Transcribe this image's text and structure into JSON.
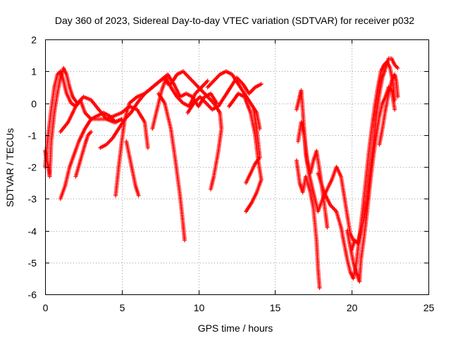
{
  "chart_data": {
    "type": "scatter",
    "title": "Day 360 of 2023, Sidereal Day-to-day VTEC variation (SDTVAR) for receiver p032",
    "xlabel": "GPS time / hours",
    "ylabel": "SDTVAR / TECUs",
    "xlim": [
      0,
      25
    ],
    "ylim": [
      -6,
      2
    ],
    "xticks": [
      "0",
      "5",
      "10",
      "15",
      "20",
      "25"
    ],
    "yticks": [
      "2",
      "1",
      "0",
      "-1",
      "-2",
      "-3",
      "-4",
      "-5",
      "-6"
    ],
    "grid": true,
    "marker": "plus",
    "color": "#ff0000",
    "tracks": [
      [
        [
          0.0,
          -1.5
        ],
        [
          0.2,
          -2.0
        ],
        [
          0.3,
          -2.3
        ],
        [
          0.4,
          -1.2
        ],
        [
          0.6,
          -0.3
        ],
        [
          0.8,
          0.3
        ],
        [
          1.0,
          0.8
        ],
        [
          1.2,
          1.1
        ],
        [
          1.4,
          0.9
        ],
        [
          1.6,
          0.5
        ],
        [
          1.8,
          0.2
        ],
        [
          2.1,
          0.0
        ]
      ],
      [
        [
          0.0,
          -2.0
        ],
        [
          0.2,
          -1.0
        ],
        [
          0.4,
          -0.2
        ],
        [
          0.6,
          0.5
        ],
        [
          0.8,
          0.9
        ],
        [
          1.0,
          1.0
        ],
        [
          1.2,
          0.7
        ],
        [
          1.4,
          0.3
        ],
        [
          1.7,
          0.0
        ],
        [
          2.0,
          -0.1
        ],
        [
          2.3,
          0.1
        ],
        [
          2.6,
          -0.3
        ],
        [
          3.0,
          -0.5
        ],
        [
          3.5,
          -0.5
        ],
        [
          4.0,
          -0.5
        ],
        [
          4.5,
          -0.6
        ],
        [
          5.0,
          -0.5
        ]
      ],
      [
        [
          1.0,
          -3.0
        ],
        [
          1.3,
          -2.6
        ],
        [
          1.6,
          -2.0
        ],
        [
          1.9,
          -1.6
        ],
        [
          2.2,
          -1.2
        ],
        [
          2.6,
          -0.8
        ],
        [
          3.0,
          -0.5
        ],
        [
          3.4,
          -0.4
        ],
        [
          3.8,
          -0.3
        ],
        [
          4.2,
          -0.4
        ],
        [
          4.6,
          -0.6
        ],
        [
          5.0,
          -0.5
        ]
      ],
      [
        [
          1.0,
          -0.9
        ],
        [
          1.5,
          -0.6
        ],
        [
          2.0,
          -0.1
        ],
        [
          2.5,
          0.2
        ],
        [
          3.0,
          0.1
        ],
        [
          3.5,
          -0.2
        ],
        [
          4.0,
          -0.5
        ],
        [
          4.5,
          -0.4
        ],
        [
          5.0,
          -0.3
        ],
        [
          5.5,
          -0.1
        ],
        [
          6.0,
          -0.2
        ],
        [
          6.5,
          -0.6
        ],
        [
          6.7,
          -1.4
        ]
      ],
      [
        [
          2.0,
          -2.3
        ],
        [
          2.3,
          -1.8
        ],
        [
          2.6,
          -1.3
        ],
        [
          2.8,
          -1.0
        ],
        [
          3.0,
          -0.9
        ]
      ],
      [
        [
          3.6,
          -1.4
        ],
        [
          4.0,
          -1.3
        ],
        [
          4.4,
          -1.1
        ],
        [
          4.8,
          -0.8
        ],
        [
          5.2,
          -0.5
        ],
        [
          5.6,
          -0.3
        ],
        [
          6.0,
          0.0
        ],
        [
          6.5,
          0.3
        ],
        [
          7.0,
          0.5
        ],
        [
          7.5,
          0.7
        ],
        [
          7.8,
          0.8
        ],
        [
          8.0,
          0.6
        ]
      ],
      [
        [
          4.6,
          -2.9
        ],
        [
          4.8,
          -2.0
        ],
        [
          5.0,
          -1.2
        ],
        [
          5.2,
          -0.5
        ],
        [
          5.5,
          0.0
        ],
        [
          6.0,
          0.2
        ],
        [
          6.5,
          0.3
        ],
        [
          7.0,
          0.5
        ],
        [
          7.5,
          0.7
        ],
        [
          8.0,
          0.9
        ],
        [
          8.4,
          0.6
        ],
        [
          8.8,
          0.2
        ],
        [
          9.2,
          0.3
        ],
        [
          9.6,
          0.2
        ],
        [
          10.0,
          -0.1
        ],
        [
          10.4,
          0.2
        ],
        [
          10.8,
          0.3
        ],
        [
          11.2,
          0.0
        ]
      ],
      [
        [
          5.3,
          -1.2
        ],
        [
          5.6,
          -1.9
        ],
        [
          5.9,
          -2.6
        ],
        [
          6.1,
          -2.9
        ]
      ],
      [
        [
          7.0,
          -0.8
        ],
        [
          7.3,
          -0.2
        ],
        [
          7.6,
          0.4
        ],
        [
          7.9,
          0.8
        ],
        [
          8.2,
          0.5
        ],
        [
          8.6,
          0.2
        ],
        [
          9.0,
          0.0
        ],
        [
          9.4,
          -0.1
        ],
        [
          9.8,
          0.3
        ],
        [
          10.2,
          0.5
        ],
        [
          10.6,
          0.7
        ]
      ],
      [
        [
          7.4,
          0.3
        ],
        [
          7.8,
          0.0
        ],
        [
          8.2,
          -0.8
        ],
        [
          8.5,
          -1.8
        ],
        [
          8.8,
          -2.9
        ],
        [
          9.0,
          -3.8
        ],
        [
          9.1,
          -4.3
        ]
      ],
      [
        [
          8.2,
          0.6
        ],
        [
          8.6,
          0.9
        ],
        [
          9.0,
          1.0
        ],
        [
          9.4,
          0.8
        ],
        [
          9.8,
          0.6
        ],
        [
          10.2,
          0.4
        ],
        [
          10.6,
          0.2
        ],
        [
          11.0,
          0.0
        ],
        [
          11.4,
          -0.3
        ],
        [
          11.5,
          -0.8
        ],
        [
          11.3,
          -1.5
        ],
        [
          11.0,
          -2.3
        ],
        [
          10.8,
          -2.7
        ]
      ],
      [
        [
          9.3,
          -0.3
        ],
        [
          9.7,
          0.0
        ],
        [
          10.1,
          0.2
        ],
        [
          10.5,
          0.0
        ],
        [
          10.9,
          -0.2
        ],
        [
          11.3,
          -0.1
        ],
        [
          11.7,
          0.2
        ],
        [
          12.1,
          0.5
        ],
        [
          12.5,
          0.8
        ],
        [
          12.9,
          0.6
        ],
        [
          13.3,
          0.3
        ],
        [
          13.7,
          0.5
        ],
        [
          14.1,
          0.6
        ]
      ],
      [
        [
          10.6,
          0.5
        ],
        [
          11.0,
          0.7
        ],
        [
          11.4,
          0.9
        ],
        [
          11.8,
          1.0
        ],
        [
          12.2,
          0.9
        ],
        [
          12.6,
          0.6
        ],
        [
          13.0,
          0.3
        ],
        [
          13.4,
          0.0
        ],
        [
          13.8,
          -0.3
        ],
        [
          14.0,
          -0.8
        ]
      ],
      [
        [
          12.0,
          -0.1
        ],
        [
          12.3,
          0.1
        ],
        [
          12.6,
          0.3
        ],
        [
          13.0,
          0.2
        ],
        [
          13.4,
          -0.3
        ],
        [
          13.7,
          -1.0
        ],
        [
          13.9,
          -1.8
        ],
        [
          14.1,
          -2.4
        ],
        [
          13.8,
          -2.8
        ],
        [
          13.5,
          -3.1
        ],
        [
          13.1,
          -3.4
        ]
      ],
      [
        [
          13.1,
          -2.5
        ],
        [
          13.4,
          -2.2
        ],
        [
          13.7,
          -1.9
        ],
        [
          14.0,
          -1.7
        ],
        [
          13.8,
          -0.8
        ],
        [
          13.6,
          -0.2
        ]
      ],
      [
        [
          16.4,
          -0.2
        ],
        [
          16.6,
          0.2
        ],
        [
          16.7,
          0.4
        ],
        [
          16.8,
          -0.2
        ],
        [
          16.9,
          -0.9
        ],
        [
          17.0,
          -1.6
        ],
        [
          17.2,
          -2.2
        ],
        [
          17.4,
          -2.6
        ],
        [
          17.6,
          -3.0
        ],
        [
          17.8,
          -3.4
        ],
        [
          18.1,
          -3.0
        ],
        [
          18.4,
          -2.7
        ],
        [
          18.7,
          -2.4
        ],
        [
          19.0,
          -2.0
        ],
        [
          19.3,
          -2.3
        ],
        [
          19.5,
          -2.9
        ],
        [
          19.7,
          -3.5
        ],
        [
          19.9,
          -4.1
        ],
        [
          20.1,
          -4.3
        ]
      ],
      [
        [
          16.5,
          -1.2
        ],
        [
          16.7,
          -0.6
        ],
        [
          16.9,
          -1.0
        ],
        [
          17.1,
          -1.8
        ],
        [
          17.3,
          -2.2
        ],
        [
          17.5,
          -1.8
        ],
        [
          17.7,
          -1.5
        ],
        [
          17.9,
          -2.1
        ],
        [
          18.1,
          -2.8
        ],
        [
          18.3,
          -3.5
        ],
        [
          18.4,
          -3.9
        ]
      ],
      [
        [
          16.4,
          -1.8
        ],
        [
          16.6,
          -2.5
        ],
        [
          16.8,
          -2.8
        ],
        [
          17.0,
          -2.3
        ],
        [
          17.3,
          -2.8
        ],
        [
          17.5,
          -3.3
        ],
        [
          17.7,
          -4.3
        ],
        [
          17.8,
          -5.2
        ],
        [
          17.9,
          -5.8
        ]
      ],
      [
        [
          17.8,
          -2.2
        ],
        [
          18.2,
          -2.8
        ],
        [
          18.6,
          -3.2
        ],
        [
          19.0,
          -3.4
        ],
        [
          19.3,
          -3.9
        ],
        [
          19.5,
          -4.4
        ],
        [
          19.7,
          -4.9
        ],
        [
          19.9,
          -5.3
        ],
        [
          20.1,
          -5.5
        ],
        [
          20.3,
          -5.0
        ],
        [
          20.5,
          -4.2
        ],
        [
          20.7,
          -3.4
        ],
        [
          20.9,
          -2.5
        ],
        [
          21.1,
          -1.6
        ],
        [
          21.3,
          -0.8
        ],
        [
          21.5,
          -0.1
        ],
        [
          21.7,
          0.5
        ],
        [
          21.9,
          1.0
        ],
        [
          22.1,
          1.2
        ],
        [
          22.3,
          1.3
        ],
        [
          22.5,
          1.1
        ],
        [
          22.7,
          0.6
        ],
        [
          22.8,
          0.1
        ]
      ],
      [
        [
          19.7,
          -4.0
        ],
        [
          19.9,
          -4.5
        ],
        [
          20.1,
          -5.0
        ],
        [
          20.3,
          -5.3
        ],
        [
          20.5,
          -5.6
        ],
        [
          20.6,
          -4.9
        ],
        [
          20.8,
          -4.2
        ],
        [
          21.0,
          -3.4
        ],
        [
          21.2,
          -2.5
        ],
        [
          21.4,
          -1.7
        ],
        [
          21.6,
          -1.0
        ],
        [
          21.8,
          -0.4
        ],
        [
          22.0,
          0.0
        ],
        [
          22.2,
          0.2
        ],
        [
          22.4,
          0.5
        ],
        [
          22.6,
          0.4
        ],
        [
          22.8,
          -0.2
        ]
      ],
      [
        [
          20.0,
          -4.6
        ],
        [
          20.2,
          -4.3
        ],
        [
          20.4,
          -4.4
        ],
        [
          20.6,
          -4.0
        ],
        [
          20.8,
          -3.6
        ],
        [
          21.0,
          -3.0
        ],
        [
          21.2,
          -2.1
        ],
        [
          21.4,
          -1.3
        ],
        [
          21.6,
          -0.4
        ],
        [
          21.8,
          0.3
        ],
        [
          22.0,
          0.8
        ],
        [
          22.2,
          1.1
        ],
        [
          22.4,
          1.4
        ],
        [
          22.6,
          1.4
        ],
        [
          22.8,
          1.2
        ],
        [
          23.0,
          1.1
        ]
      ],
      [
        [
          21.8,
          -1.3
        ],
        [
          22.0,
          -0.8
        ],
        [
          22.2,
          -0.2
        ],
        [
          22.4,
          0.3
        ],
        [
          22.6,
          0.7
        ],
        [
          22.8,
          0.9
        ],
        [
          22.9,
          0.7
        ],
        [
          23.0,
          0.2
        ]
      ]
    ]
  }
}
